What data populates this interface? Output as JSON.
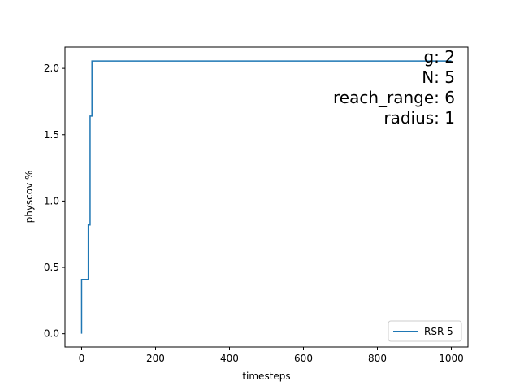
{
  "chart_data": {
    "type": "line",
    "title": "",
    "xlabel": "timesteps",
    "ylabel": "physcov %",
    "xlim": [
      -45,
      1045
    ],
    "ylim": [
      -0.1,
      2.16
    ],
    "xticks": [
      0,
      200,
      400,
      600,
      800,
      1000
    ],
    "yticks": [
      0.0,
      0.5,
      1.0,
      1.5,
      2.0
    ],
    "xtick_labels": [
      "0",
      "200",
      "400",
      "600",
      "800",
      "1000"
    ],
    "ytick_labels": [
      "0.0",
      "0.5",
      "1.0",
      "1.5",
      "2.0"
    ],
    "grid": false,
    "legend_position": "lower-right",
    "series": [
      {
        "name": "RSR-5",
        "color": "#1f77b4",
        "x": [
          0,
          0,
          18,
          18,
          23,
          23,
          28,
          28,
          1000
        ],
        "y": [
          0.0,
          0.41,
          0.41,
          0.82,
          0.82,
          1.64,
          1.64,
          2.055,
          2.055
        ]
      }
    ],
    "annotations": [
      "g: 2",
      "N: 5",
      "reach_range: 6",
      "radius: 1"
    ]
  }
}
